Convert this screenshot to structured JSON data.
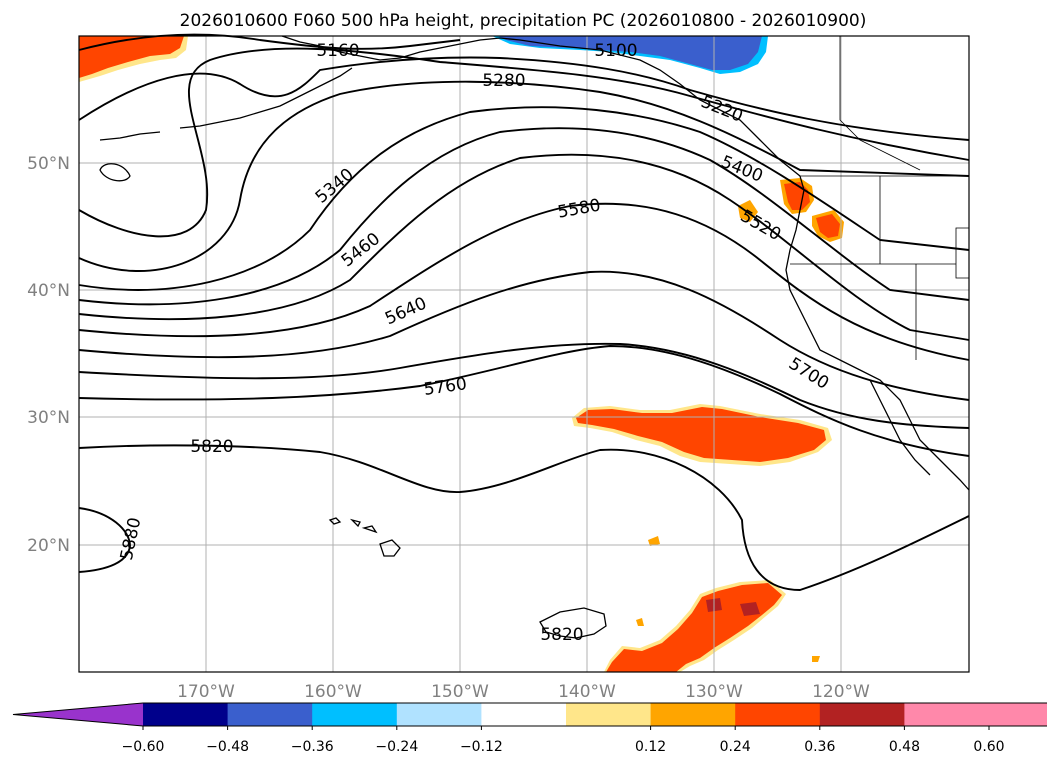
{
  "title": "2026010600 F060 500 hPa height, precipitation PC (2026010800 - 2026010900)",
  "lat_labels": [
    "50°N",
    "40°N",
    "30°N",
    "20°N"
  ],
  "lon_labels": [
    "170°W",
    "160°W",
    "150°W",
    "140°W",
    "130°W",
    "120°W"
  ],
  "contour_labels": [
    "5160",
    "5280",
    "5100",
    "5220",
    "5340",
    "5400",
    "5460",
    "5520",
    "5580",
    "5640",
    "5700",
    "5760",
    "5820",
    "5820",
    "5880"
  ],
  "colorbar": {
    "ticks": [
      "−0.60",
      "−0.48",
      "−0.36",
      "−0.24",
      "−0.12",
      "0.12",
      "0.24",
      "0.36",
      "0.48",
      "0.60"
    ],
    "colors": [
      "#9933cc",
      "#00008b",
      "#3a5fcd",
      "#00bfff",
      "#b0e2ff",
      "#ffffff",
      "#ffe68a",
      "#ffa500",
      "#ff4500",
      "#b22222",
      "#ff88aa",
      "#ff88aa"
    ],
    "extend": "both"
  },
  "precip_colors": {
    "positive_light": "#ffe68a",
    "positive_mid": "#ffa500",
    "positive_strong": "#ff4500",
    "positive_max": "#b22222",
    "negative_mid": "#3a5fcd",
    "negative_light": "#00bfff"
  }
}
